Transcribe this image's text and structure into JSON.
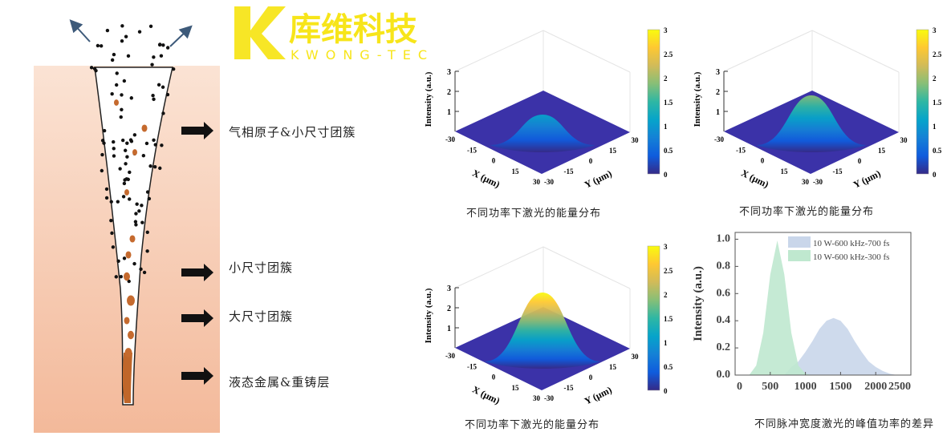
{
  "diagram": {
    "labels": [
      "气相原子&小尺寸团簇",
      "小尺寸团簇",
      "大尺寸团簇",
      "液态金属&重铸层"
    ],
    "colors": {
      "material": "#f5c6aa",
      "particle": "#111111",
      "droplet": "#c56a2e"
    }
  },
  "chart_data": [
    {
      "type": "surface",
      "caption": "不同功率下激光的能量分布",
      "zlabel": "Intensity (a.u.)",
      "xlabel": "X (μm)",
      "ylabel": "Y (μm)",
      "xticks": [
        "-30",
        "-15",
        "0",
        "15",
        "30"
      ],
      "yticks": [
        "-30",
        "-15",
        "0",
        "15",
        "30"
      ],
      "zticks": [
        "1",
        "2",
        "3"
      ],
      "zlim": [
        0,
        3
      ],
      "colorbar_ticks": [
        "0",
        "0.5",
        "1",
        "1.5",
        "2",
        "2.5",
        "3"
      ],
      "peak_intensity": 1.0,
      "colormap": "parula"
    },
    {
      "type": "surface",
      "caption": "不同功率下激光的能量分布",
      "zlabel": "Intensity (a.u.)",
      "xlabel": "X (μm)",
      "ylabel": "Y (μm)",
      "xticks": [
        "-30",
        "-15",
        "0",
        "15",
        "30"
      ],
      "yticks": [
        "-30",
        "-15",
        "0",
        "15",
        "30"
      ],
      "zticks": [
        "1",
        "2",
        "3"
      ],
      "zlim": [
        0,
        3
      ],
      "colorbar_ticks": [
        "0",
        "0.5",
        "1",
        "1.5",
        "2",
        "2.5",
        "3"
      ],
      "peak_intensity": 2.0,
      "colormap": "parula"
    },
    {
      "type": "surface",
      "caption": "不同功率下激光的能量分布",
      "zlabel": "Intensity (a.u.)",
      "xlabel": "X (μm)",
      "ylabel": "Y (μm)",
      "xticks": [
        "-30",
        "-15",
        "0",
        "15",
        "30"
      ],
      "yticks": [
        "-30",
        "-15",
        "0",
        "15",
        "30"
      ],
      "zticks": [
        "1",
        "2",
        "3"
      ],
      "zlim": [
        0,
        3
      ],
      "colorbar_ticks": [
        "0",
        "0.5",
        "1",
        "1.5",
        "2",
        "2.5",
        "3"
      ],
      "peak_intensity": 3.0,
      "colormap": "parula"
    },
    {
      "type": "area",
      "caption": "不同脉冲宽度激光的峰值功率的差异",
      "ylabel": "Intensity (a.u.)",
      "xlim": [
        0,
        2500
      ],
      "ylim": [
        0,
        1.05
      ],
      "xticks": [
        0,
        500,
        1000,
        1500,
        2000,
        2500
      ],
      "yticks": [
        "0.0",
        "0.2",
        "0.4",
        "0.6",
        "0.8",
        "1.0"
      ],
      "legend_position": "top-right",
      "x": [
        0,
        100,
        200,
        300,
        400,
        500,
        600,
        700,
        800,
        900,
        1000,
        1100,
        1200,
        1300,
        1400,
        1500,
        1600,
        1700,
        1800,
        1900,
        2000,
        2100,
        2200,
        2300,
        2400,
        2500
      ],
      "series": [
        {
          "name": "10 W-600 kHz-700 fs",
          "color": "#c9d6ea",
          "values": [
            0,
            0,
            0,
            0,
            0,
            0,
            0,
            0,
            0.06,
            0.1,
            0.17,
            0.25,
            0.34,
            0.4,
            0.42,
            0.4,
            0.34,
            0.25,
            0.17,
            0.1,
            0.06,
            0.03,
            0.01,
            0,
            0,
            0
          ]
        },
        {
          "name": "10 W-600 kHz-300 fs",
          "color": "#bfe8cf",
          "values": [
            0,
            0,
            0,
            0.07,
            0.31,
            0.74,
            0.99,
            0.74,
            0.31,
            0.07,
            0.01,
            0,
            0,
            0,
            0,
            0,
            0,
            0,
            0,
            0,
            0,
            0,
            0,
            0,
            0,
            0
          ]
        }
      ]
    }
  ],
  "watermark": {
    "name": "库维科技",
    "sub": "KWONG-TECH",
    "color": "#f7e51a"
  }
}
